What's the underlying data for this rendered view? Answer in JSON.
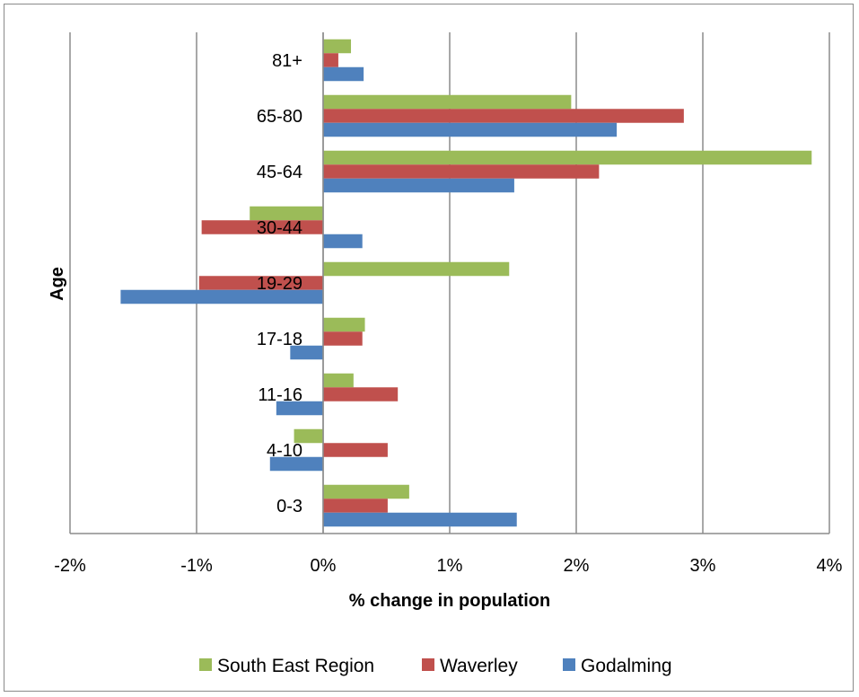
{
  "chart_data": {
    "type": "bar",
    "orientation": "horizontal",
    "categories": [
      "0-3",
      "4-10",
      "11-16",
      "17-18",
      "19-29",
      "30-44",
      "45-64",
      "65-80",
      "81+"
    ],
    "series": [
      {
        "name": "South East Region",
        "color": "#9BBB59",
        "values": [
          0.68,
          -0.23,
          0.24,
          0.33,
          1.47,
          -0.58,
          3.86,
          1.96,
          0.22
        ]
      },
      {
        "name": "Waverley",
        "color": "#C0504D",
        "values": [
          0.51,
          0.51,
          0.59,
          0.31,
          -0.98,
          -0.96,
          2.18,
          2.85,
          0.12
        ]
      },
      {
        "name": "Godalming",
        "color": "#4F81BD",
        "values": [
          1.53,
          -0.42,
          -0.37,
          -0.26,
          -1.6,
          0.31,
          1.51,
          2.32,
          0.32
        ]
      }
    ],
    "xlabel": "% change in population",
    "ylabel": "Age",
    "xlim": [
      -2,
      4
    ],
    "xticks": [
      "-2%",
      "-1%",
      "0%",
      "1%",
      "2%",
      "3%",
      "4%"
    ],
    "grid": "vertical",
    "legend_position": "bottom"
  }
}
